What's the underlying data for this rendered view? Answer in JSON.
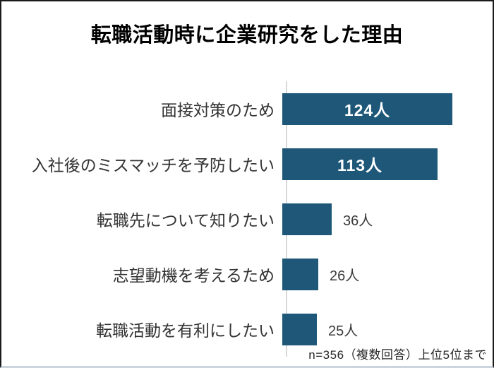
{
  "chart_data": {
    "type": "bar",
    "orientation": "horizontal",
    "title": "転職活動時に企業研究をした理由",
    "categories": [
      "面接対策のため",
      "入社後のミスマッチを予防したい",
      "転職先について知りたい",
      "志望動機を考えるため",
      "転職活動を有利にしたい"
    ],
    "values": [
      124,
      113,
      36,
      26,
      25
    ],
    "value_labels": [
      "124人",
      "113人",
      "36人",
      "26人",
      "25人"
    ],
    "unit": "人",
    "xlabel": "",
    "ylabel": "",
    "xlim": [
      0,
      124
    ],
    "grid": "off",
    "legend": "none",
    "bar_color": "#1e5778",
    "axis_line_color": "#d8d8d8",
    "inside_label_min_value": 100,
    "footnote": "n=356（複数回答）上位5位まで"
  },
  "frame": {
    "border_color": "#1b1b1b",
    "bottom_line_color": "#ccd5de",
    "background": "#ffffff"
  }
}
